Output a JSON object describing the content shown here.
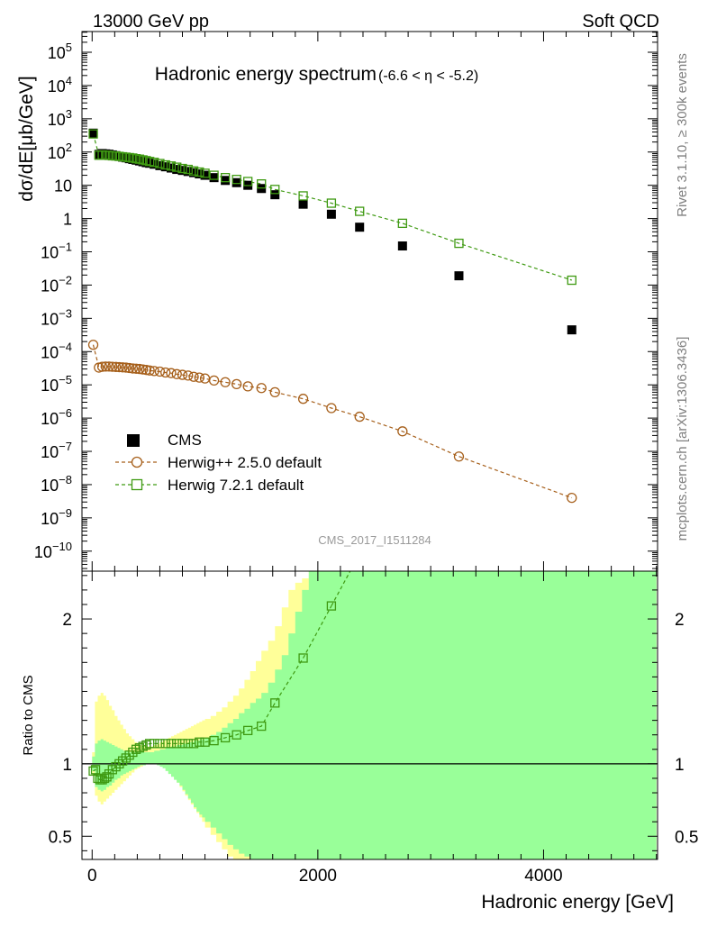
{
  "header": {
    "beam": "13000 GeV pp",
    "process": "Soft QCD"
  },
  "side_labels": {
    "rivet": "Rivet 3.1.10, ≥ 300k events",
    "mcplots": "mcplots.cern.ch [arXiv:1306.3436]"
  },
  "analysis_id": "CMS_2017_I1511284",
  "chart_data": [
    {
      "type": "scatter",
      "panel": "main",
      "title": "Hadronic energy spectrum",
      "title_suffix": "(-6.6 < η < -5.2)",
      "ylabel": "dσ/dE[μb/GeV]",
      "xlabel": "",
      "yscale": "log",
      "xlim": [
        -90,
        5010
      ],
      "ylim": [
        2.5e-11,
        420000.0
      ],
      "ytick_labels": [
        {
          "value": 100000.0,
          "base": "10",
          "exp": "5"
        },
        {
          "value": 10000.0,
          "base": "10",
          "exp": "4"
        },
        {
          "value": 1000.0,
          "base": "10",
          "exp": "3"
        },
        {
          "value": 100.0,
          "base": "10",
          "exp": "2"
        },
        {
          "value": 10,
          "base": "10",
          "exp": ""
        },
        {
          "value": 1,
          "base": "1",
          "exp": ""
        },
        {
          "value": 0.1,
          "base": "10",
          "exp": "−1"
        },
        {
          "value": 0.01,
          "base": "10",
          "exp": "−2"
        },
        {
          "value": 0.001,
          "base": "10",
          "exp": "−3"
        },
        {
          "value": 0.0001,
          "base": "10",
          "exp": "−4"
        },
        {
          "value": 1e-05,
          "base": "10",
          "exp": "−5"
        },
        {
          "value": 1e-06,
          "base": "10",
          "exp": "−6"
        },
        {
          "value": 1e-07,
          "base": "10",
          "exp": "−7"
        },
        {
          "value": 1e-08,
          "base": "10",
          "exp": "−8"
        },
        {
          "value": 1e-09,
          "base": "10",
          "exp": "−9"
        },
        {
          "value": 1e-10,
          "base": "10",
          "exp": "−10"
        }
      ],
      "legend_position": "bottom-left",
      "series": [
        {
          "name": "CMS",
          "marker": "filled-square",
          "color": "#000000",
          "x": [
            10,
            60,
            90,
            120,
            150,
            180,
            210,
            240,
            270,
            300,
            330,
            360,
            390,
            420,
            450,
            480,
            510,
            550,
            600,
            650,
            700,
            750,
            800,
            850,
            900,
            950,
            1000,
            1080,
            1180,
            1280,
            1380,
            1500,
            1620,
            1870,
            2120,
            2370,
            2750,
            3250,
            4250
          ],
          "y": [
            370,
            85,
            90,
            88,
            86,
            82,
            78,
            74,
            70,
            67,
            63,
            60,
            57,
            54,
            51,
            48,
            46,
            43,
            39,
            36,
            33,
            30,
            28,
            26,
            24,
            22,
            20,
            17,
            14,
            12,
            10,
            8,
            5.2,
            2.7,
            1.35,
            0.55,
            0.15,
            0.019,
            0.00045
          ]
        },
        {
          "name": "Herwig++ 2.5.0 default",
          "marker": "open-circle",
          "line": "dashed",
          "color": "#a65f1a",
          "x": [
            10,
            60,
            90,
            120,
            150,
            180,
            210,
            240,
            270,
            300,
            330,
            360,
            390,
            420,
            450,
            480,
            510,
            550,
            600,
            650,
            700,
            750,
            800,
            850,
            900,
            950,
            1000,
            1080,
            1180,
            1280,
            1380,
            1500,
            1620,
            1870,
            2120,
            2370,
            2750,
            3250,
            4250
          ],
          "y": [
            0.00016,
            3.3e-05,
            3.5e-05,
            3.55e-05,
            3.55e-05,
            3.5e-05,
            3.45e-05,
            3.4e-05,
            3.35e-05,
            3.3e-05,
            3.2e-05,
            3.1e-05,
            3.05e-05,
            3e-05,
            2.9e-05,
            2.8e-05,
            2.7e-05,
            2.6e-05,
            2.5e-05,
            2.35e-05,
            2.25e-05,
            2.1e-05,
            2e-05,
            1.9e-05,
            1.75e-05,
            1.65e-05,
            1.55e-05,
            1.35e-05,
            1.2e-05,
            1.05e-05,
            9e-06,
            8e-06,
            6e-06,
            3.8e-06,
            2e-06,
            1.1e-06,
            4e-07,
            7e-08,
            4e-09
          ]
        },
        {
          "name": "Herwig 7.2.1 default",
          "marker": "open-square",
          "line": "dashed",
          "color": "#3f9a12",
          "x": [
            10,
            60,
            90,
            120,
            150,
            180,
            210,
            240,
            270,
            300,
            330,
            360,
            390,
            420,
            450,
            480,
            510,
            550,
            600,
            650,
            700,
            750,
            800,
            850,
            900,
            950,
            1000,
            1080,
            1180,
            1280,
            1380,
            1500,
            1620,
            1870,
            2120,
            2370,
            2750,
            3250,
            4250
          ],
          "y": [
            350,
            80,
            82,
            80,
            79,
            77,
            76,
            74,
            72,
            70,
            68,
            66,
            63,
            61,
            58,
            55,
            52,
            49,
            45,
            41,
            38,
            35,
            32,
            30,
            27,
            25,
            23,
            20,
            17,
            15,
            13,
            11,
            7.5,
            4.8,
            2.9,
            1.65,
            0.72,
            0.18,
            0.014
          ]
        }
      ]
    },
    {
      "type": "line",
      "panel": "ratio",
      "ylabel": "Ratio to CMS",
      "xlabel": "Hadronic energy [GeV]",
      "xlim": [
        -90,
        5010
      ],
      "ylim": [
        0.34,
        2.33
      ],
      "xticks": [
        0,
        2000,
        4000
      ],
      "xtick_labels": [
        "0",
        "2000",
        "4000"
      ],
      "yticks": [
        0.5,
        1,
        2
      ],
      "ytick_labels": [
        "0.5",
        "1",
        "2"
      ],
      "reference_line": 1,
      "bands": [
        {
          "name": "CMS total uncertainty",
          "color": "#ffff99",
          "edges": [
            0,
            25,
            50,
            75,
            100,
            125,
            150,
            175,
            200,
            225,
            250,
            275,
            300,
            325,
            350,
            375,
            400,
            425,
            450,
            475,
            500,
            525,
            550,
            575,
            600,
            625,
            650,
            675,
            700,
            725,
            750,
            775,
            800,
            825,
            850,
            875,
            900,
            925,
            950,
            975,
            1000,
            1050,
            1100,
            1150,
            1200,
            1250,
            1300,
            1350,
            1400,
            1450,
            1500,
            1560,
            1620,
            1680,
            1740,
            1800,
            1860,
            1920,
            1980,
            2040,
            2100,
            2160,
            2220,
            2300,
            5000
          ],
          "low": [
            0.92,
            0.78,
            0.74,
            0.72,
            0.74,
            0.76,
            0.78,
            0.8,
            0.82,
            0.84,
            0.86,
            0.88,
            0.9,
            0.92,
            0.94,
            0.96,
            0.97,
            0.98,
            0.99,
            1.0,
            1.01,
            1.01,
            1.01,
            1.0,
            0.99,
            0.98,
            0.96,
            0.94,
            0.92,
            0.9,
            0.87,
            0.84,
            0.81,
            0.78,
            0.75,
            0.72,
            0.69,
            0.66,
            0.63,
            0.6,
            0.56,
            0.51,
            0.46,
            0.41,
            0.36,
            0.33,
            0.33,
            0.33,
            0.33,
            0.33,
            0.33,
            0.33,
            0.33,
            0.33,
            0.33,
            0.33,
            0.33,
            0.33,
            0.33,
            0.33,
            0.33,
            0.33,
            0.33,
            0.33
          ],
          "high": [
            1.08,
            1.43,
            1.47,
            1.49,
            1.47,
            1.44,
            1.4,
            1.37,
            1.33,
            1.3,
            1.27,
            1.24,
            1.21,
            1.19,
            1.17,
            1.15,
            1.14,
            1.13,
            1.12,
            1.12,
            1.12,
            1.12,
            1.13,
            1.14,
            1.15,
            1.16,
            1.17,
            1.18,
            1.19,
            1.2,
            1.21,
            1.22,
            1.23,
            1.24,
            1.25,
            1.26,
            1.27,
            1.28,
            1.29,
            1.3,
            1.31,
            1.33,
            1.36,
            1.39,
            1.43,
            1.47,
            1.52,
            1.58,
            1.64,
            1.71,
            1.78,
            1.85,
            1.95,
            2.08,
            2.2,
            2.25,
            2.28,
            2.33,
            2.33,
            2.33,
            2.33,
            2.33,
            2.33,
            2.33
          ]
        },
        {
          "name": "CMS statistical uncertainty",
          "color": "#99ff99",
          "edges": [
            0,
            25,
            50,
            75,
            100,
            125,
            150,
            175,
            200,
            225,
            250,
            275,
            300,
            325,
            350,
            375,
            400,
            425,
            450,
            475,
            500,
            525,
            550,
            575,
            600,
            625,
            650,
            675,
            700,
            725,
            750,
            775,
            800,
            825,
            850,
            875,
            900,
            925,
            950,
            975,
            1000,
            1050,
            1100,
            1150,
            1200,
            1250,
            1300,
            1350,
            1400,
            1450,
            1500,
            1560,
            1620,
            1680,
            1740,
            1800,
            1860,
            1920,
            1980,
            2040,
            2100,
            2160,
            2220,
            2300,
            5000
          ],
          "low": [
            0.95,
            0.84,
            0.82,
            0.81,
            0.82,
            0.84,
            0.85,
            0.87,
            0.89,
            0.9,
            0.92,
            0.93,
            0.94,
            0.95,
            0.96,
            0.97,
            0.98,
            0.99,
            0.99,
            1.0,
            1.0,
            1.0,
            1.0,
            0.99,
            0.98,
            0.97,
            0.95,
            0.93,
            0.91,
            0.89,
            0.87,
            0.85,
            0.82,
            0.79,
            0.76,
            0.73,
            0.7,
            0.67,
            0.65,
            0.63,
            0.6,
            0.56,
            0.52,
            0.48,
            0.44,
            0.41,
            0.38,
            0.36,
            0.34,
            0.33,
            0.33,
            0.33,
            0.33,
            0.33,
            0.33,
            0.33,
            0.33,
            0.33,
            0.33,
            0.33,
            0.33,
            0.33,
            0.33,
            0.33
          ],
          "high": [
            1.05,
            1.14,
            1.16,
            1.17,
            1.16,
            1.15,
            1.14,
            1.13,
            1.12,
            1.11,
            1.1,
            1.09,
            1.09,
            1.08,
            1.08,
            1.08,
            1.08,
            1.08,
            1.08,
            1.08,
            1.08,
            1.08,
            1.09,
            1.09,
            1.1,
            1.1,
            1.11,
            1.11,
            1.12,
            1.12,
            1.13,
            1.13,
            1.14,
            1.14,
            1.15,
            1.15,
            1.16,
            1.16,
            1.17,
            1.17,
            1.18,
            1.2,
            1.22,
            1.25,
            1.28,
            1.31,
            1.35,
            1.38,
            1.42,
            1.45,
            1.49,
            1.56,
            1.65,
            1.75,
            1.9,
            2.05,
            2.2,
            2.33,
            2.33,
            2.33,
            2.33,
            2.33,
            2.33,
            2.33
          ]
        }
      ],
      "series": [
        {
          "name": "Herwig 7.2.1 default",
          "marker": "open-square",
          "line": "dashed",
          "color": "#3f9a12",
          "x": [
            10,
            30,
            50,
            70,
            90,
            110,
            130,
            150,
            180,
            210,
            240,
            270,
            300,
            330,
            360,
            390,
            420,
            450,
            480,
            510,
            550,
            600,
            650,
            700,
            750,
            800,
            850,
            900,
            950,
            1000,
            1080,
            1180,
            1280,
            1380,
            1500,
            1620,
            1870,
            2120
          ],
          "y": [
            0.95,
            0.96,
            0.9,
            0.89,
            0.89,
            0.9,
            0.91,
            0.93,
            0.96,
            0.98,
            1.0,
            1.02,
            1.04,
            1.06,
            1.08,
            1.1,
            1.11,
            1.12,
            1.13,
            1.14,
            1.14,
            1.14,
            1.14,
            1.14,
            1.14,
            1.14,
            1.14,
            1.14,
            1.15,
            1.15,
            1.16,
            1.18,
            1.2,
            1.23,
            1.26,
            1.42,
            1.73,
            2.09
          ]
        }
      ]
    }
  ]
}
